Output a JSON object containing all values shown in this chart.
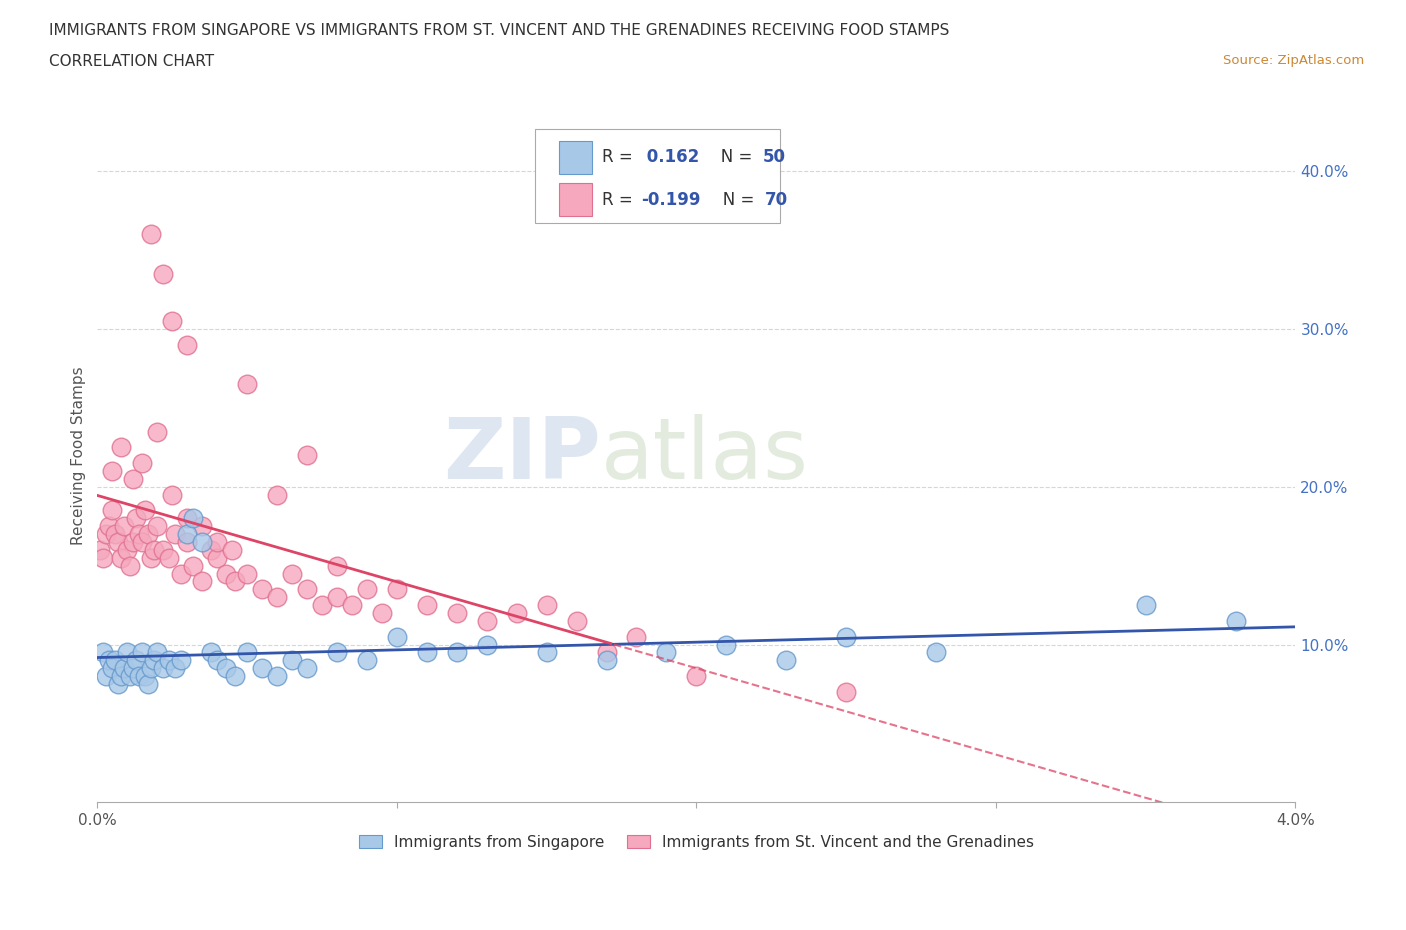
{
  "title_line1": "IMMIGRANTS FROM SINGAPORE VS IMMIGRANTS FROM ST. VINCENT AND THE GRENADINES RECEIVING FOOD STAMPS",
  "title_line2": "CORRELATION CHART",
  "source_text": "Source: ZipAtlas.com",
  "ylabel": "Receiving Food Stamps",
  "x_min": 0.0,
  "x_max": 4.0,
  "y_min": 0.0,
  "y_max": 44.0,
  "y_ticks": [
    10.0,
    20.0,
    30.0,
    40.0
  ],
  "blue_color": "#a8c8e8",
  "pink_color": "#f5a8be",
  "blue_edge": "#6699cc",
  "pink_edge": "#e07090",
  "trend_blue": "#3355aa",
  "trend_pink": "#dd4466",
  "R_blue": 0.162,
  "N_blue": 50,
  "R_pink": -0.199,
  "N_pink": 70,
  "singapore_x": [
    0.02,
    0.03,
    0.04,
    0.05,
    0.06,
    0.07,
    0.08,
    0.09,
    0.1,
    0.11,
    0.12,
    0.13,
    0.14,
    0.15,
    0.16,
    0.17,
    0.18,
    0.19,
    0.2,
    0.22,
    0.24,
    0.26,
    0.28,
    0.3,
    0.32,
    0.35,
    0.38,
    0.4,
    0.43,
    0.46,
    0.5,
    0.55,
    0.6,
    0.65,
    0.7,
    0.8,
    0.9,
    1.0,
    1.1,
    1.2,
    1.3,
    1.5,
    1.7,
    1.9,
    2.1,
    2.3,
    2.5,
    2.8,
    3.5,
    3.8
  ],
  "singapore_y": [
    9.5,
    8.0,
    9.0,
    8.5,
    9.0,
    7.5,
    8.0,
    8.5,
    9.5,
    8.0,
    8.5,
    9.0,
    8.0,
    9.5,
    8.0,
    7.5,
    8.5,
    9.0,
    9.5,
    8.5,
    9.0,
    8.5,
    9.0,
    17.0,
    18.0,
    16.5,
    9.5,
    9.0,
    8.5,
    8.0,
    9.5,
    8.5,
    8.0,
    9.0,
    8.5,
    9.5,
    9.0,
    10.5,
    9.5,
    9.5,
    10.0,
    9.5,
    9.0,
    9.5,
    10.0,
    9.0,
    10.5,
    9.5,
    12.5,
    11.5
  ],
  "vincent_x": [
    0.01,
    0.02,
    0.03,
    0.04,
    0.05,
    0.06,
    0.07,
    0.08,
    0.09,
    0.1,
    0.11,
    0.12,
    0.13,
    0.14,
    0.15,
    0.16,
    0.17,
    0.18,
    0.19,
    0.2,
    0.22,
    0.24,
    0.26,
    0.28,
    0.3,
    0.32,
    0.35,
    0.38,
    0.4,
    0.43,
    0.46,
    0.5,
    0.55,
    0.6,
    0.65,
    0.7,
    0.75,
    0.8,
    0.85,
    0.9,
    0.95,
    1.0,
    1.1,
    1.2,
    1.3,
    1.4,
    1.5,
    1.6,
    1.7,
    1.8,
    0.05,
    0.08,
    0.12,
    0.15,
    0.2,
    0.25,
    0.3,
    0.35,
    0.4,
    0.45,
    0.18,
    0.22,
    0.25,
    0.3,
    0.5,
    0.6,
    0.7,
    0.8,
    2.0,
    2.5
  ],
  "vincent_y": [
    16.0,
    15.5,
    17.0,
    17.5,
    18.5,
    17.0,
    16.5,
    15.5,
    17.5,
    16.0,
    15.0,
    16.5,
    18.0,
    17.0,
    16.5,
    18.5,
    17.0,
    15.5,
    16.0,
    17.5,
    16.0,
    15.5,
    17.0,
    14.5,
    16.5,
    15.0,
    14.0,
    16.0,
    15.5,
    14.5,
    14.0,
    14.5,
    13.5,
    13.0,
    14.5,
    13.5,
    12.5,
    13.0,
    12.5,
    13.5,
    12.0,
    13.5,
    12.5,
    12.0,
    11.5,
    12.0,
    12.5,
    11.5,
    9.5,
    10.5,
    21.0,
    22.5,
    20.5,
    21.5,
    23.5,
    19.5,
    18.0,
    17.5,
    16.5,
    16.0,
    36.0,
    33.5,
    30.5,
    29.0,
    26.5,
    19.5,
    22.0,
    15.0,
    8.0,
    7.0
  ],
  "watermark_zip": "ZIP",
  "watermark_atlas": "atlas",
  "background_color": "#ffffff",
  "grid_color": "#cccccc"
}
